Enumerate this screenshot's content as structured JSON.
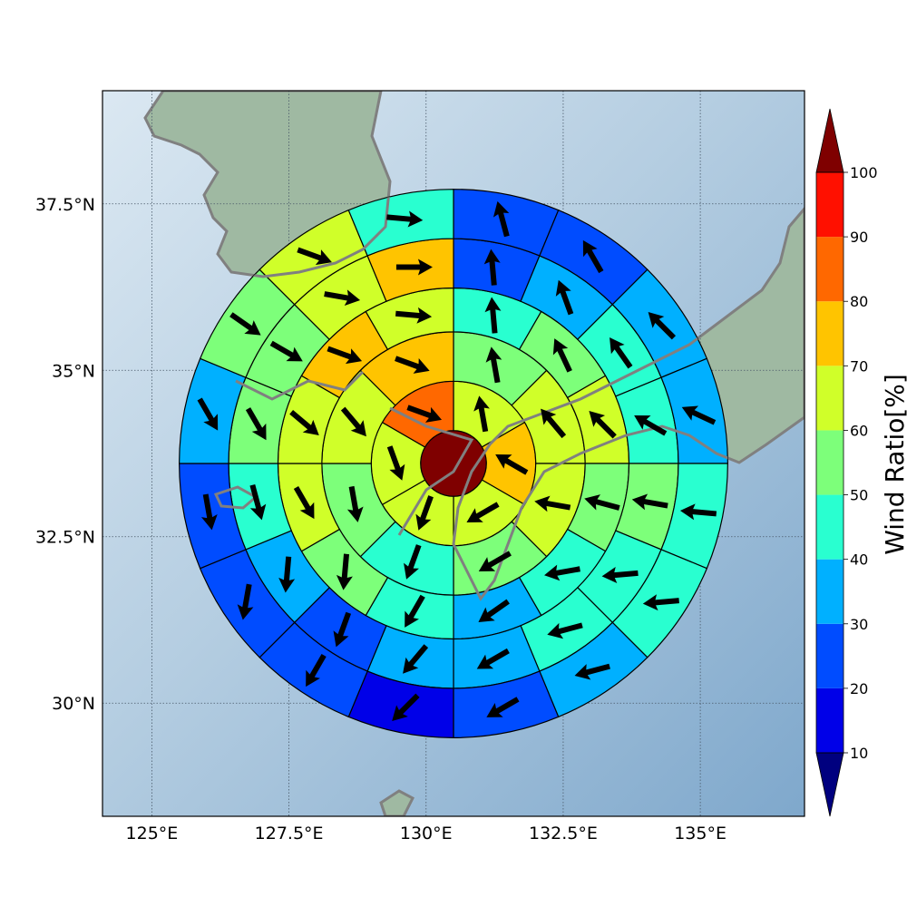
{
  "chart_data": {
    "type": "heatmap",
    "title": "",
    "projection": "polar grid of storm-relative sectors over map (Korea / Japan region)",
    "x_ticks": [
      "125°E",
      "127.5°E",
      "130°E",
      "132.5°E",
      "135°E"
    ],
    "y_ticks": [
      "37.5°N",
      "35°N",
      "32.5°N",
      "30°N"
    ],
    "x_tick_values": [
      125,
      127.5,
      130,
      132.5,
      135
    ],
    "y_tick_values": [
      37.5,
      35,
      32.5,
      30
    ],
    "xlim": [
      124.1,
      136.9
    ],
    "ylim": [
      28.3,
      39.2
    ],
    "grid": true,
    "center": {
      "lon": 130.5,
      "lat": 33.6
    },
    "rings_deg": [
      0.6,
      1.5,
      2.4,
      3.2,
      4.1,
      5.0
    ],
    "sectors_per_ring": [
      1,
      6,
      8,
      12,
      16,
      16
    ],
    "sector_values": [
      [
        100
      ],
      [
        65,
        72,
        65,
        65,
        65,
        82
      ],
      [
        55,
        65,
        65,
        55,
        42,
        55,
        65,
        72
      ],
      [
        48,
        55,
        65,
        55,
        48,
        38,
        42,
        55,
        65,
        65,
        72,
        65
      ],
      [
        28,
        38,
        42,
        48,
        55,
        45,
        45,
        38,
        35,
        28,
        38,
        45,
        55,
        55,
        65,
        72
      ],
      [
        25,
        28,
        35,
        38,
        48,
        48,
        35,
        25,
        18,
        25,
        25,
        25,
        35,
        55,
        65,
        45
      ]
    ],
    "arrow_angles_deg": [
      [
        0
      ],
      [
        -10,
        -60,
        -120,
        -160,
        160,
        110
      ],
      [
        -10,
        -40,
        -80,
        -120,
        -160,
        170,
        140,
        110
      ],
      [
        -5,
        -25,
        -45,
        -75,
        -100,
        -125,
        -150,
        -175,
        150,
        130,
        110,
        95
      ],
      [
        -5,
        -20,
        -35,
        -60,
        -80,
        -95,
        -105,
        -120,
        -140,
        -160,
        -175,
        165,
        150,
        120,
        100,
        90
      ],
      [
        -15,
        -30,
        -45,
        -65,
        -85,
        -95,
        -105,
        -120,
        -135,
        -150,
        -170,
        170,
        150,
        125,
        110,
        95
      ]
    ],
    "colorbar": {
      "label": "Wind Ratio[%]",
      "ticks": [
        10,
        20,
        30,
        40,
        50,
        60,
        70,
        80,
        90,
        100
      ],
      "levels": [
        10,
        20,
        30,
        40,
        50,
        60,
        70,
        80,
        90,
        100
      ],
      "colors": [
        "#0000e8",
        "#004cff",
        "#00b0ff",
        "#29ffd0",
        "#7dff7a",
        "#d0ff29",
        "#ffc400",
        "#ff6800",
        "#ff1000"
      ],
      "under_color": "#00007f",
      "over_color": "#7f0000"
    },
    "coastline_color": "#808080"
  }
}
